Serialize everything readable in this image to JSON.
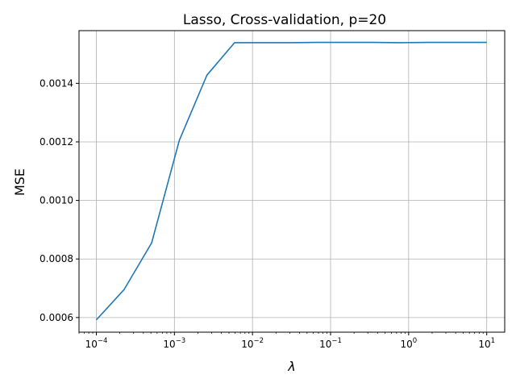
{
  "chart_data": {
    "type": "line",
    "title": "Lasso, Cross-validation, p=20",
    "xlabel": "λ",
    "ylabel": "MSE",
    "x_scale": "log",
    "xlim": [
      6e-05,
      17
    ],
    "ylim": [
      0.00055,
      0.00158
    ],
    "x_ticks": [
      0.0001,
      0.001,
      0.01,
      0.1,
      1,
      10
    ],
    "x_tick_labels": [
      {
        "base": "10",
        "exp": "−4"
      },
      {
        "base": "10",
        "exp": "−3"
      },
      {
        "base": "10",
        "exp": "−2"
      },
      {
        "base": "10",
        "exp": "−1"
      },
      {
        "base": "10",
        "exp": "0"
      },
      {
        "base": "10",
        "exp": "1"
      }
    ],
    "y_ticks": [
      0.0006,
      0.0008,
      0.001,
      0.0012,
      0.0014
    ],
    "y_tick_labels": [
      "0.0006",
      "0.0008",
      "0.0010",
      "0.0012",
      "0.0014"
    ],
    "grid": true,
    "series": [
      {
        "color": "#1f77b4",
        "x": [
          0.0001,
          0.000226,
          0.000511,
          0.001155,
          0.00261,
          0.0059,
          0.0133,
          0.0301,
          0.068,
          0.1538,
          0.3475,
          0.7854,
          1.775,
          4.012,
          10
        ],
        "y": [
          0.000592,
          0.000695,
          0.000855,
          0.001205,
          0.001428,
          0.001539,
          0.001539,
          0.001539,
          0.00154,
          0.00154,
          0.00154,
          0.001539,
          0.00154,
          0.00154,
          0.00154
        ]
      }
    ]
  }
}
